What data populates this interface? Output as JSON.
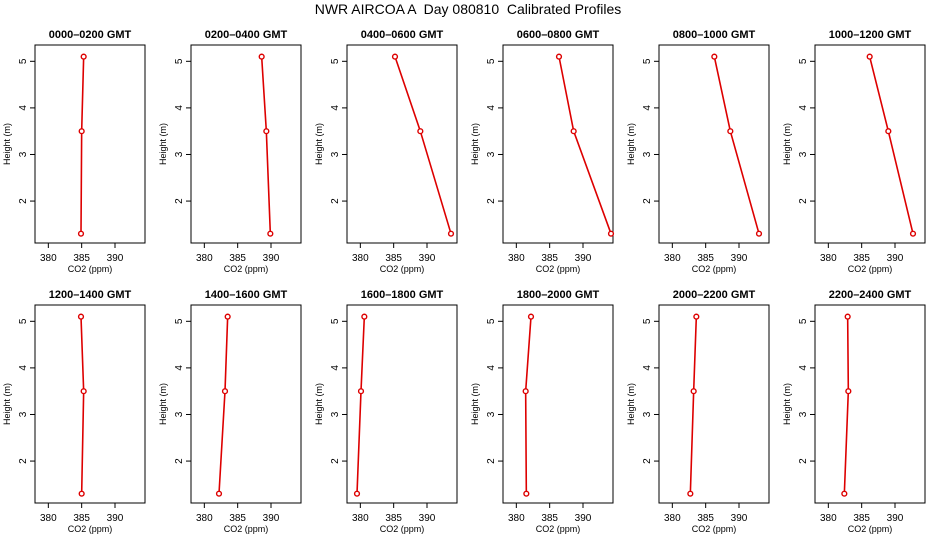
{
  "title": "NWR AIRCOA A  Day 080810  Calibrated Profiles",
  "colors": {
    "series": "#dd0000",
    "axis": "#000000"
  },
  "chart_data": [
    {
      "type": "line",
      "title": "0000–0200 GMT",
      "xlabel": "CO2 (ppm)",
      "ylabel": "Height (m)",
      "xlim": [
        378,
        394.5
      ],
      "ylim": [
        1.1,
        5.35
      ],
      "xticks": [
        "380",
        "385",
        "390"
      ],
      "yticks": [
        "2",
        "3",
        "4",
        "5"
      ],
      "x": [
        384.9,
        385.0,
        385.3
      ],
      "y": [
        1.3,
        3.5,
        5.1
      ]
    },
    {
      "type": "line",
      "title": "0200–0400 GMT",
      "xlabel": "CO2 (ppm)",
      "ylabel": "Height (m)",
      "xlim": [
        378,
        394.5
      ],
      "ylim": [
        1.1,
        5.35
      ],
      "xticks": [
        "380",
        "385",
        "390"
      ],
      "yticks": [
        "2",
        "3",
        "4",
        "5"
      ],
      "x": [
        389.9,
        389.3,
        388.6
      ],
      "y": [
        1.3,
        3.5,
        5.1
      ]
    },
    {
      "type": "line",
      "title": "0400–0600 GMT",
      "xlabel": "CO2 (ppm)",
      "ylabel": "Height (m)",
      "xlim": [
        378,
        394.5
      ],
      "ylim": [
        1.1,
        5.35
      ],
      "xticks": [
        "380",
        "385",
        "390"
      ],
      "yticks": [
        "2",
        "3",
        "4",
        "5"
      ],
      "x": [
        393.6,
        389.0,
        385.2
      ],
      "y": [
        1.3,
        3.5,
        5.1
      ]
    },
    {
      "type": "line",
      "title": "0600–0800 GMT",
      "xlabel": "CO2 (ppm)",
      "ylabel": "Height (m)",
      "xlim": [
        378,
        394.5
      ],
      "ylim": [
        1.1,
        5.35
      ],
      "xticks": [
        "380",
        "385",
        "390"
      ],
      "yticks": [
        "2",
        "3",
        "4",
        "5"
      ],
      "x": [
        394.2,
        388.6,
        386.4
      ],
      "y": [
        1.3,
        3.5,
        5.1
      ]
    },
    {
      "type": "line",
      "title": "0800–1000 GMT",
      "xlabel": "CO2 (ppm)",
      "ylabel": "Height (m)",
      "xlim": [
        378,
        394.5
      ],
      "ylim": [
        1.1,
        5.35
      ],
      "xticks": [
        "380",
        "385",
        "390"
      ],
      "yticks": [
        "2",
        "3",
        "4",
        "5"
      ],
      "x": [
        393.0,
        388.7,
        386.3
      ],
      "y": [
        1.3,
        3.5,
        5.1
      ]
    },
    {
      "type": "line",
      "title": "1000–1200 GMT",
      "xlabel": "CO2 (ppm)",
      "ylabel": "Height (m)",
      "xlim": [
        378,
        394.5
      ],
      "ylim": [
        1.1,
        5.35
      ],
      "xticks": [
        "380",
        "385",
        "390"
      ],
      "yticks": [
        "2",
        "3",
        "4",
        "5"
      ],
      "x": [
        392.7,
        389.0,
        386.2
      ],
      "y": [
        1.3,
        3.5,
        5.1
      ]
    },
    {
      "type": "line",
      "title": "1200–1400 GMT",
      "xlabel": "CO2 (ppm)",
      "ylabel": "Height (m)",
      "xlim": [
        378,
        394.5
      ],
      "ylim": [
        1.1,
        5.35
      ],
      "xticks": [
        "380",
        "385",
        "390"
      ],
      "yticks": [
        "2",
        "3",
        "4",
        "5"
      ],
      "x": [
        385.0,
        385.3,
        384.9
      ],
      "y": [
        1.3,
        3.5,
        5.1
      ]
    },
    {
      "type": "line",
      "title": "1400–1600 GMT",
      "xlabel": "CO2 (ppm)",
      "ylabel": "Height (m)",
      "xlim": [
        378,
        394.5
      ],
      "ylim": [
        1.1,
        5.35
      ],
      "xticks": [
        "380",
        "385",
        "390"
      ],
      "yticks": [
        "2",
        "3",
        "4",
        "5"
      ],
      "x": [
        382.2,
        383.1,
        383.5
      ],
      "y": [
        1.3,
        3.5,
        5.1
      ]
    },
    {
      "type": "line",
      "title": "1600–1800 GMT",
      "xlabel": "CO2 (ppm)",
      "ylabel": "Height (m)",
      "xlim": [
        378,
        394.5
      ],
      "ylim": [
        1.1,
        5.35
      ],
      "xticks": [
        "380",
        "385",
        "390"
      ],
      "yticks": [
        "2",
        "3",
        "4",
        "5"
      ],
      "x": [
        379.5,
        380.1,
        380.6
      ],
      "y": [
        1.3,
        3.5,
        5.1
      ]
    },
    {
      "type": "line",
      "title": "1800–2000 GMT",
      "xlabel": "CO2 (ppm)",
      "ylabel": "Height (m)",
      "xlim": [
        378,
        394.5
      ],
      "ylim": [
        1.1,
        5.35
      ],
      "xticks": [
        "380",
        "385",
        "390"
      ],
      "yticks": [
        "2",
        "3",
        "4",
        "5"
      ],
      "x": [
        381.5,
        381.4,
        382.2
      ],
      "y": [
        1.3,
        3.5,
        5.1
      ]
    },
    {
      "type": "line",
      "title": "2000–2200 GMT",
      "xlabel": "CO2 (ppm)",
      "ylabel": "Height (m)",
      "xlim": [
        378,
        394.5
      ],
      "ylim": [
        1.1,
        5.35
      ],
      "xticks": [
        "380",
        "385",
        "390"
      ],
      "yticks": [
        "2",
        "3",
        "4",
        "5"
      ],
      "x": [
        382.7,
        383.2,
        383.6
      ],
      "y": [
        1.3,
        3.5,
        5.1
      ]
    },
    {
      "type": "line",
      "title": "2200–2400 GMT",
      "xlabel": "CO2 (ppm)",
      "ylabel": "Height (m)",
      "xlim": [
        378,
        394.5
      ],
      "ylim": [
        1.1,
        5.35
      ],
      "xticks": [
        "380",
        "385",
        "390"
      ],
      "yticks": [
        "2",
        "3",
        "4",
        "5"
      ],
      "x": [
        382.4,
        383.0,
        382.9
      ],
      "y": [
        1.3,
        3.5,
        5.1
      ]
    }
  ]
}
